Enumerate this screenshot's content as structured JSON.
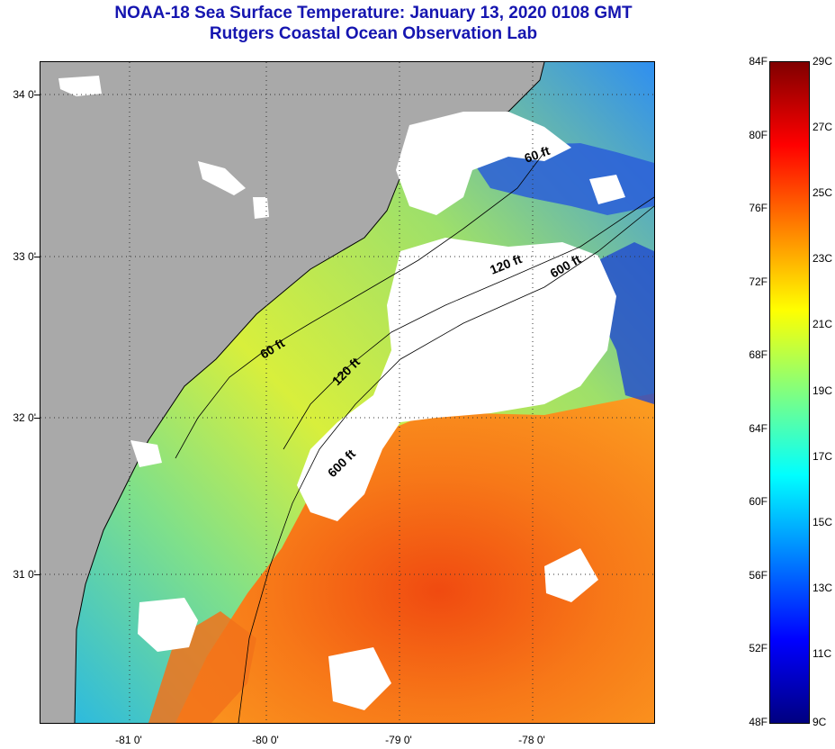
{
  "header": {
    "title": "NOAA-18 Sea Surface Temperature:  January 13, 2020 0108 GMT",
    "subtitle": "Rutgers Coastal Ocean Observation Lab"
  },
  "map": {
    "lat_labels": [
      "34 0'",
      "33 0'",
      "32 0'",
      "31 0'"
    ],
    "lon_labels": [
      "-81 0'",
      "-80 0'",
      "-79 0'",
      "-78 0'"
    ],
    "isobaths": [
      "60 ft",
      "120 ft",
      "600 ft"
    ],
    "isobath_labels": [
      {
        "text": "60 ft"
      },
      {
        "text": "60 ft"
      },
      {
        "text": "120 ft"
      },
      {
        "text": "120 ft"
      },
      {
        "text": "600 ft"
      },
      {
        "text": "600 ft"
      }
    ],
    "colors": {
      "land": "#a9a9a9",
      "cloud": "#ffffff",
      "gridline": "#444444"
    }
  },
  "colorbar": {
    "f_labels": [
      "84F",
      "80F",
      "76F",
      "72F",
      "68F",
      "64F",
      "60F",
      "56F",
      "52F",
      "48F"
    ],
    "c_labels": [
      "29C",
      "27C",
      "25C",
      "23C",
      "21C",
      "19C",
      "17C",
      "15C",
      "13C",
      "11C",
      "9C"
    ],
    "range_f": [
      48,
      84
    ],
    "range_c": [
      9,
      29
    ],
    "colors": [
      "#000080",
      "#0000ff",
      "#0080ff",
      "#00ffff",
      "#80ff80",
      "#ffff00",
      "#ff8000",
      "#ff0000",
      "#800000"
    ]
  }
}
